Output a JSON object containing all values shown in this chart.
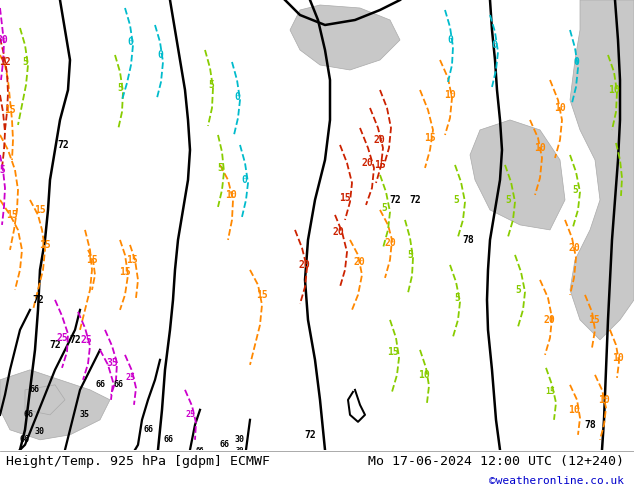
{
  "title_left": "Height/Temp. 925 hPa [gdpm] ECMWF",
  "title_right": "Mo 17-06-2024 12:00 UTC (12+240)",
  "watermark": "©weatheronline.co.uk",
  "fig_width": 6.34,
  "fig_height": 4.9,
  "dpi": 100,
  "title_fontsize": 9.5,
  "watermark_color": "#0000cc",
  "watermark_fontsize": 8,
  "map_bg": "#b8d98a",
  "gray1": "#c8c8c8",
  "gray2": "#d5d5d5",
  "black_lw": 1.8,
  "colored_lw": 1.3,
  "orange": "#FF8800",
  "lime": "#88cc00",
  "cyan": "#00bbcc",
  "red": "#cc2200",
  "magenta": "#cc00cc",
  "darkgray": "#888888"
}
